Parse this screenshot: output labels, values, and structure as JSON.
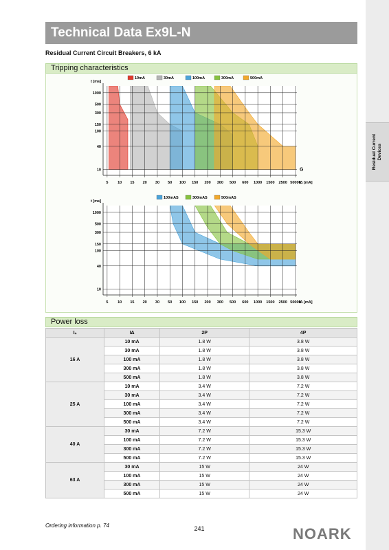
{
  "side_tab": "Residual Current Devices",
  "header": {
    "title": "Technical Data Ex9L-N",
    "subtitle": "Residual Current Circuit Breakers, 6 kA"
  },
  "tripping": {
    "title": "Tripping characteristics",
    "charts": [
      {
        "type": "area",
        "y_label": "t [ms]",
        "x_label": "IΔ [mA]",
        "annotation": "G",
        "log_y": true,
        "grid": true,
        "xlim": [
          4,
          70000
        ],
        "ylim": [
          7,
          1500
        ],
        "xticks": [
          5,
          10,
          15,
          20,
          30,
          50,
          100,
          150,
          200,
          300,
          500,
          600,
          1000,
          1500,
          2500,
          50000
        ],
        "yticks": [
          1000,
          500,
          300,
          150,
          100,
          40,
          10
        ],
        "series": [
          {
            "name": "10mA",
            "color": "#e0392b",
            "x": [
              5.5,
              9,
              10,
              13,
              13,
              5.5
            ],
            "t": [
              1500,
              1500,
              500,
              200,
              10,
              10
            ]
          },
          {
            "name": "30mA",
            "color": "#b4b4b4",
            "x": [
              14,
              22,
              30,
              50,
              100,
              100,
              14
            ],
            "t": [
              1500,
              1500,
              300,
              150,
              100,
              10,
              10
            ]
          },
          {
            "name": "100mA",
            "color": "#4aa3da",
            "x": [
              50,
              100,
              150,
              300,
              500,
              500,
              50
            ],
            "t": [
              1500,
              1500,
              300,
              150,
              80,
              10,
              10
            ]
          },
          {
            "name": "300mA",
            "color": "#86c23f",
            "x": [
              150,
              220,
              500,
              700,
              1000,
              1000,
              150
            ],
            "t": [
              1500,
              1500,
              300,
              150,
              40,
              10,
              10
            ]
          },
          {
            "name": "500mA",
            "color": "#f2a82a",
            "x": [
              250,
              450,
              700,
              1000,
              2500,
              50000,
              50000,
              250
            ],
            "t": [
              1500,
              1500,
              300,
              150,
              40,
              40,
              10,
              10
            ]
          }
        ]
      },
      {
        "type": "area",
        "y_label": "t [ms]",
        "x_label": "IΔ [mA]",
        "log_y": true,
        "grid": true,
        "xlim": [
          4,
          70000
        ],
        "ylim": [
          7,
          1500
        ],
        "xticks": [
          5,
          10,
          15,
          20,
          30,
          50,
          100,
          150,
          200,
          300,
          500,
          600,
          1000,
          1500,
          2500,
          50000
        ],
        "yticks": [
          1000,
          500,
          300,
          150,
          100,
          40,
          10
        ],
        "series": [
          {
            "name": "100mAS",
            "color": "#4aa3da",
            "x": [
              50,
              100,
              150,
              300,
              50000,
              50000,
              1000,
              300,
              100,
              60
            ],
            "t": [
              1500,
              1500,
              300,
              150,
              150,
              40,
              40,
              60,
              150,
              500
            ]
          },
          {
            "name": "300mAS",
            "color": "#86c23f",
            "x": [
              150,
              220,
              400,
              700,
              50000,
              50000,
              1000,
              500,
              300,
              200
            ],
            "t": [
              1500,
              1500,
              300,
              150,
              150,
              60,
              60,
              100,
              150,
              400
            ]
          },
          {
            "name": "500mAS",
            "color": "#f2a82a",
            "x": [
              250,
              450,
              700,
              1000,
              50000,
              50000,
              1500,
              700,
              400
            ],
            "t": [
              1500,
              1500,
              300,
              150,
              150,
              60,
              60,
              150,
              500
            ]
          }
        ]
      }
    ]
  },
  "power_loss": {
    "title": "Power loss",
    "columns": [
      "Iₙ",
      "IΔ",
      "2P",
      "4P"
    ],
    "groups": [
      {
        "rating": "16 A",
        "rows": [
          [
            "10 mA",
            "1.8 W",
            "3.8 W"
          ],
          [
            "30 mA",
            "1.8 W",
            "3.8 W"
          ],
          [
            "100 mA",
            "1.8 W",
            "3.8 W"
          ],
          [
            "300 mA",
            "1.8 W",
            "3.8 W"
          ],
          [
            "500 mA",
            "1.8 W",
            "3.8 W"
          ]
        ]
      },
      {
        "rating": "25 A",
        "rows": [
          [
            "10 mA",
            "3.4 W",
            "7.2 W"
          ],
          [
            "30 mA",
            "3.4 W",
            "7.2 W"
          ],
          [
            "100 mA",
            "3.4 W",
            "7.2 W"
          ],
          [
            "300 mA",
            "3.4 W",
            "7.2 W"
          ],
          [
            "500 mA",
            "3.4 W",
            "7.2 W"
          ]
        ]
      },
      {
        "rating": "40 A",
        "rows": [
          [
            "30 mA",
            "7.2 W",
            "15.3 W"
          ],
          [
            "100 mA",
            "7.2 W",
            "15.3 W"
          ],
          [
            "300 mA",
            "7.2 W",
            "15.3 W"
          ],
          [
            "500 mA",
            "7.2 W",
            "15.3 W"
          ]
        ]
      },
      {
        "rating": "63 A",
        "rows": [
          [
            "30 mA",
            "15 W",
            "24 W"
          ],
          [
            "100 mA",
            "15 W",
            "24 W"
          ],
          [
            "300 mA",
            "15 W",
            "24 W"
          ],
          [
            "500 mA",
            "15 W",
            "24 W"
          ]
        ]
      }
    ]
  },
  "footer": {
    "ordering": "Ordering information p. 74",
    "page": "241",
    "logo": "NOARK"
  }
}
